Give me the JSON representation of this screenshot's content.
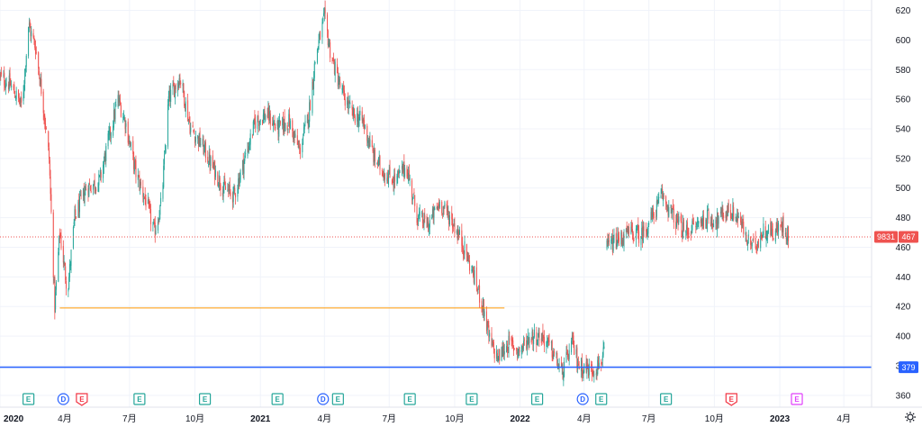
{
  "colors": {
    "up": "#26a69a",
    "down": "#ef5350",
    "grid": "#f0f3fa",
    "support_line": "#2962ff",
    "horizontal_orange": "#ff9800",
    "last_price_line": "#ef5350",
    "event_earnings": "#26a69a",
    "event_dividend": "#2962ff",
    "event_earnings_upcoming_red": "#f23645",
    "event_earnings_future": "#e040fb"
  },
  "icons": {
    "settings": "gear-icon"
  },
  "chart_data": {
    "type": "candlestick",
    "y_ticks": [
      360,
      380,
      400,
      420,
      440,
      460,
      480,
      500,
      520,
      540,
      560,
      580,
      600,
      620
    ],
    "ylim": [
      352,
      627
    ],
    "x_range": [
      "2020-01-01",
      "2023-05-10"
    ],
    "x_ticks": [
      {
        "date": "2020-01-01",
        "label": "2020",
        "bold": true
      },
      {
        "date": "2020-04-01",
        "label": "4月",
        "bold": false
      },
      {
        "date": "2020-07-01",
        "label": "7月",
        "bold": false
      },
      {
        "date": "2020-10-01",
        "label": "10月",
        "bold": false
      },
      {
        "date": "2021-01-01",
        "label": "2021",
        "bold": true
      },
      {
        "date": "2021-04-01",
        "label": "4月",
        "bold": false
      },
      {
        "date": "2021-07-01",
        "label": "7月",
        "bold": false
      },
      {
        "date": "2021-10-01",
        "label": "10月",
        "bold": false
      },
      {
        "date": "2022-01-01",
        "label": "2022",
        "bold": true
      },
      {
        "date": "2022-04-01",
        "label": "4月",
        "bold": false
      },
      {
        "date": "2022-07-01",
        "label": "7月",
        "bold": false
      },
      {
        "date": "2022-10-01",
        "label": "10月",
        "bold": false
      },
      {
        "date": "2023-01-01",
        "label": "2023",
        "bold": true
      },
      {
        "date": "2023-04-01",
        "label": "4月",
        "bold": false
      }
    ],
    "price_path": [
      [
        "2020-01-01",
        575
      ],
      [
        "2020-01-15",
        570
      ],
      [
        "2020-02-01",
        555
      ],
      [
        "2020-02-10",
        610
      ],
      [
        "2020-02-20",
        595
      ],
      [
        "2020-03-01",
        560
      ],
      [
        "2020-03-10",
        520
      ],
      [
        "2020-03-18",
        420
      ],
      [
        "2020-03-25",
        470
      ],
      [
        "2020-04-05",
        430
      ],
      [
        "2020-04-15",
        480
      ],
      [
        "2020-05-01",
        500
      ],
      [
        "2020-05-20",
        505
      ],
      [
        "2020-06-05",
        540
      ],
      [
        "2020-06-15",
        560
      ],
      [
        "2020-06-25",
        545
      ],
      [
        "2020-07-10",
        510
      ],
      [
        "2020-07-25",
        490
      ],
      [
        "2020-08-05",
        470
      ],
      [
        "2020-08-15",
        490
      ],
      [
        "2020-08-25",
        560
      ],
      [
        "2020-09-10",
        575
      ],
      [
        "2020-09-25",
        540
      ],
      [
        "2020-10-10",
        530
      ],
      [
        "2020-10-25",
        515
      ],
      [
        "2020-11-10",
        500
      ],
      [
        "2020-11-25",
        495
      ],
      [
        "2020-12-10",
        520
      ],
      [
        "2020-12-25",
        545
      ],
      [
        "2021-01-10",
        550
      ],
      [
        "2021-01-25",
        540
      ],
      [
        "2021-02-10",
        545
      ],
      [
        "2021-02-25",
        525
      ],
      [
        "2021-03-10",
        550
      ],
      [
        "2021-03-20",
        590
      ],
      [
        "2021-04-01",
        615
      ],
      [
        "2021-04-10",
        590
      ],
      [
        "2021-04-25",
        565
      ],
      [
        "2021-05-10",
        550
      ],
      [
        "2021-05-25",
        545
      ],
      [
        "2021-06-10",
        520
      ],
      [
        "2021-06-25",
        510
      ],
      [
        "2021-07-10",
        505
      ],
      [
        "2021-07-25",
        515
      ],
      [
        "2021-08-10",
        480
      ],
      [
        "2021-08-25",
        475
      ],
      [
        "2021-09-10",
        490
      ],
      [
        "2021-09-25",
        480
      ],
      [
        "2021-10-10",
        465
      ],
      [
        "2021-10-25",
        445
      ],
      [
        "2021-11-10",
        420
      ],
      [
        "2021-11-20",
        395
      ],
      [
        "2021-12-01",
        385
      ],
      [
        "2021-12-15",
        395
      ],
      [
        "2022-01-01",
        390
      ],
      [
        "2022-01-15",
        400
      ],
      [
        "2022-02-01",
        400
      ],
      [
        "2022-02-15",
        390
      ],
      [
        "2022-03-01",
        375
      ],
      [
        "2022-03-15",
        395
      ],
      [
        "2022-03-25",
        380
      ],
      [
        "2022-04-10",
        377
      ],
      [
        "2022-04-20",
        380
      ],
      [
        "2022-05-02",
        390
      ],
      [
        "2022-05-03",
        460
      ],
      [
        "2022-05-20",
        465
      ],
      [
        "2022-06-05",
        470
      ],
      [
        "2022-06-20",
        468
      ],
      [
        "2022-07-05",
        480
      ],
      [
        "2022-07-20",
        495
      ],
      [
        "2022-08-05",
        480
      ],
      [
        "2022-08-20",
        470
      ],
      [
        "2022-09-05",
        475
      ],
      [
        "2022-09-20",
        480
      ],
      [
        "2022-10-05",
        478
      ],
      [
        "2022-10-20",
        485
      ],
      [
        "2022-11-05",
        480
      ],
      [
        "2022-11-15",
        465
      ],
      [
        "2022-11-25",
        460
      ],
      [
        "2022-12-10",
        472
      ],
      [
        "2022-12-25",
        470
      ],
      [
        "2023-01-05",
        475
      ],
      [
        "2023-01-15",
        467
      ]
    ],
    "horizontal_lines": [
      {
        "name": "support-line",
        "price": 379,
        "color": "#2962ff",
        "start": "2020-01-01",
        "end": "2023-05-10",
        "width": 1.5
      },
      {
        "name": "orange-level-line",
        "price": 419,
        "color": "#ff9800",
        "start": "2020-03-25",
        "end": "2021-12-10",
        "width": 1
      }
    ],
    "last_price_line": {
      "price": 467
    },
    "price_tags": [
      {
        "name": "last-price-tag",
        "label": "467",
        "price": 467,
        "color": "#ef5350"
      },
      {
        "name": "countdown-tag",
        "label": "9831",
        "price": 467,
        "color": "#ef5350"
      },
      {
        "name": "support-price-tag",
        "label": "379",
        "price": 379,
        "color": "#2962ff"
      }
    ],
    "events": [
      {
        "date": "2020-02-10",
        "type": "E",
        "kind": "earnings"
      },
      {
        "date": "2020-03-30",
        "type": "D",
        "kind": "dividend"
      },
      {
        "date": "2020-04-25",
        "type": "E",
        "kind": "earnings-red"
      },
      {
        "date": "2020-07-15",
        "type": "E",
        "kind": "earnings"
      },
      {
        "date": "2020-10-15",
        "type": "E",
        "kind": "earnings"
      },
      {
        "date": "2021-01-25",
        "type": "E",
        "kind": "earnings"
      },
      {
        "date": "2021-03-30",
        "type": "D",
        "kind": "dividend"
      },
      {
        "date": "2021-04-20",
        "type": "E",
        "kind": "earnings"
      },
      {
        "date": "2021-07-30",
        "type": "E",
        "kind": "earnings"
      },
      {
        "date": "2021-10-25",
        "type": "E",
        "kind": "earnings"
      },
      {
        "date": "2022-01-25",
        "type": "E",
        "kind": "earnings"
      },
      {
        "date": "2022-03-30",
        "type": "D",
        "kind": "dividend"
      },
      {
        "date": "2022-04-25",
        "type": "E",
        "kind": "earnings"
      },
      {
        "date": "2022-07-25",
        "type": "E",
        "kind": "earnings"
      },
      {
        "date": "2022-10-25",
        "type": "E",
        "kind": "earnings-red"
      },
      {
        "date": "2023-01-25",
        "type": "E",
        "kind": "earnings-future"
      }
    ]
  }
}
